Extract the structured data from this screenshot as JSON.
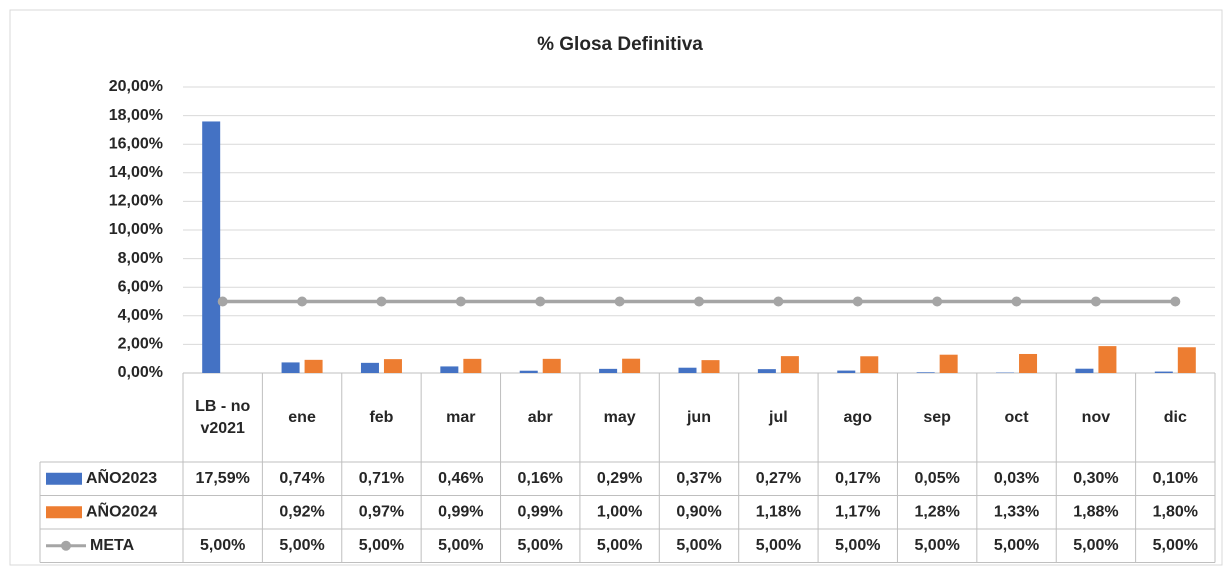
{
  "chart_data": {
    "type": "bar",
    "title": "% Glosa Definitiva",
    "categories": [
      "LB - nov2021",
      "ene",
      "feb",
      "mar",
      "abr",
      "may",
      "jun",
      "jul",
      "ago",
      "sep",
      "oct",
      "nov",
      "dic"
    ],
    "series": [
      {
        "name": "AÑO2023",
        "type": "bar",
        "color": "#4472c4",
        "values": [
          17.59,
          0.74,
          0.71,
          0.46,
          0.16,
          0.29,
          0.37,
          0.27,
          0.17,
          0.05,
          0.03,
          0.3,
          0.1
        ],
        "value_labels": [
          "17,59%",
          "0,74%",
          "0,71%",
          "0,46%",
          "0,16%",
          "0,29%",
          "0,37%",
          "0,27%",
          "0,17%",
          "0,05%",
          "0,03%",
          "0,30%",
          "0,10%"
        ]
      },
      {
        "name": "AÑO2024",
        "type": "bar",
        "color": "#ed7d31",
        "values": [
          null,
          0.92,
          0.97,
          0.99,
          0.99,
          1.0,
          0.9,
          1.18,
          1.17,
          1.28,
          1.33,
          1.88,
          1.8
        ],
        "value_labels": [
          null,
          "0,92%",
          "0,97%",
          "0,99%",
          "0,99%",
          "1,00%",
          "0,90%",
          "1,18%",
          "1,17%",
          "1,28%",
          "1,33%",
          "1,88%",
          "1,80%"
        ]
      },
      {
        "name": "META",
        "type": "line",
        "color": "#a5a5a5",
        "values": [
          5,
          5,
          5,
          5,
          5,
          5,
          5,
          5,
          5,
          5,
          5,
          5,
          5
        ],
        "value_labels": [
          "5,00%",
          "5,00%",
          "5,00%",
          "5,00%",
          "5,00%",
          "5,00%",
          "5,00%",
          "5,00%",
          "5,00%",
          "5,00%",
          "5,00%",
          "5,00%",
          "5,00%"
        ]
      }
    ],
    "ylim": [
      0,
      20
    ],
    "yticks": [
      {
        "value": 0,
        "label": "0,00%"
      },
      {
        "value": 2,
        "label": "2,00%"
      },
      {
        "value": 4,
        "label": "4,00%"
      },
      {
        "value": 6,
        "label": "6,00%"
      },
      {
        "value": 8,
        "label": "8,00%"
      },
      {
        "value": 10,
        "label": "10,00%"
      },
      {
        "value": 12,
        "label": "12,00%"
      },
      {
        "value": 14,
        "label": "14,00%"
      },
      {
        "value": 16,
        "label": "16,00%"
      },
      {
        "value": 18,
        "label": "18,00%"
      },
      {
        "value": 20,
        "label": "20,00%"
      }
    ],
    "grid": true
  }
}
